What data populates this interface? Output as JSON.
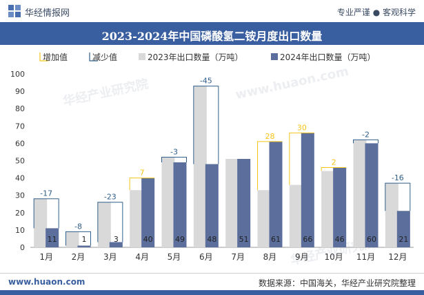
{
  "header": {
    "brand": "华经情报网",
    "tagline": "专业严谨 ● 客观科学"
  },
  "footer": {
    "left": "www.huaon.com",
    "right": "数据来源：中国海关，华经产业研究院整理"
  },
  "colors": {
    "bar2023": "#d9d9d9",
    "bar2024": "#5b6e9c",
    "increase": "#f5c518",
    "decrease": "#2f5f8a",
    "title_bg": "#3a5fa0"
  },
  "chart_data": {
    "type": "bar",
    "title": "2023-2024年中国磷酸氢二铵月度出口数量",
    "categories": [
      "1月",
      "2月",
      "3月",
      "4月",
      "5月",
      "6月",
      "7月",
      "8月",
      "9月",
      "10月",
      "11月",
      "12月"
    ],
    "series": [
      {
        "name": "2023年出口数量（万吨）",
        "values": [
          28,
          9,
          26,
          33,
          52,
          93,
          51,
          33,
          36,
          44,
          62,
          37
        ]
      },
      {
        "name": "2024年出口数量（万吨）",
        "values": [
          11,
          1,
          3,
          40,
          49,
          48,
          51,
          61,
          66,
          46,
          60,
          21
        ]
      }
    ],
    "diff_labels": [
      "-17",
      "-8",
      "-23",
      "7",
      "-3",
      "-45",
      "",
      "28",
      "30",
      "2",
      "-2",
      "-16"
    ],
    "legend": [
      "增加值",
      "减少值",
      "2023年出口数量（万吨）",
      "2024年出口数量（万吨）"
    ],
    "legend_position": "top",
    "ylim": [
      0,
      100
    ],
    "yticks": [
      0,
      10,
      20,
      30,
      40,
      50,
      60,
      70,
      80,
      90,
      100
    ],
    "xlabel": "",
    "ylabel": "",
    "grid": false
  }
}
